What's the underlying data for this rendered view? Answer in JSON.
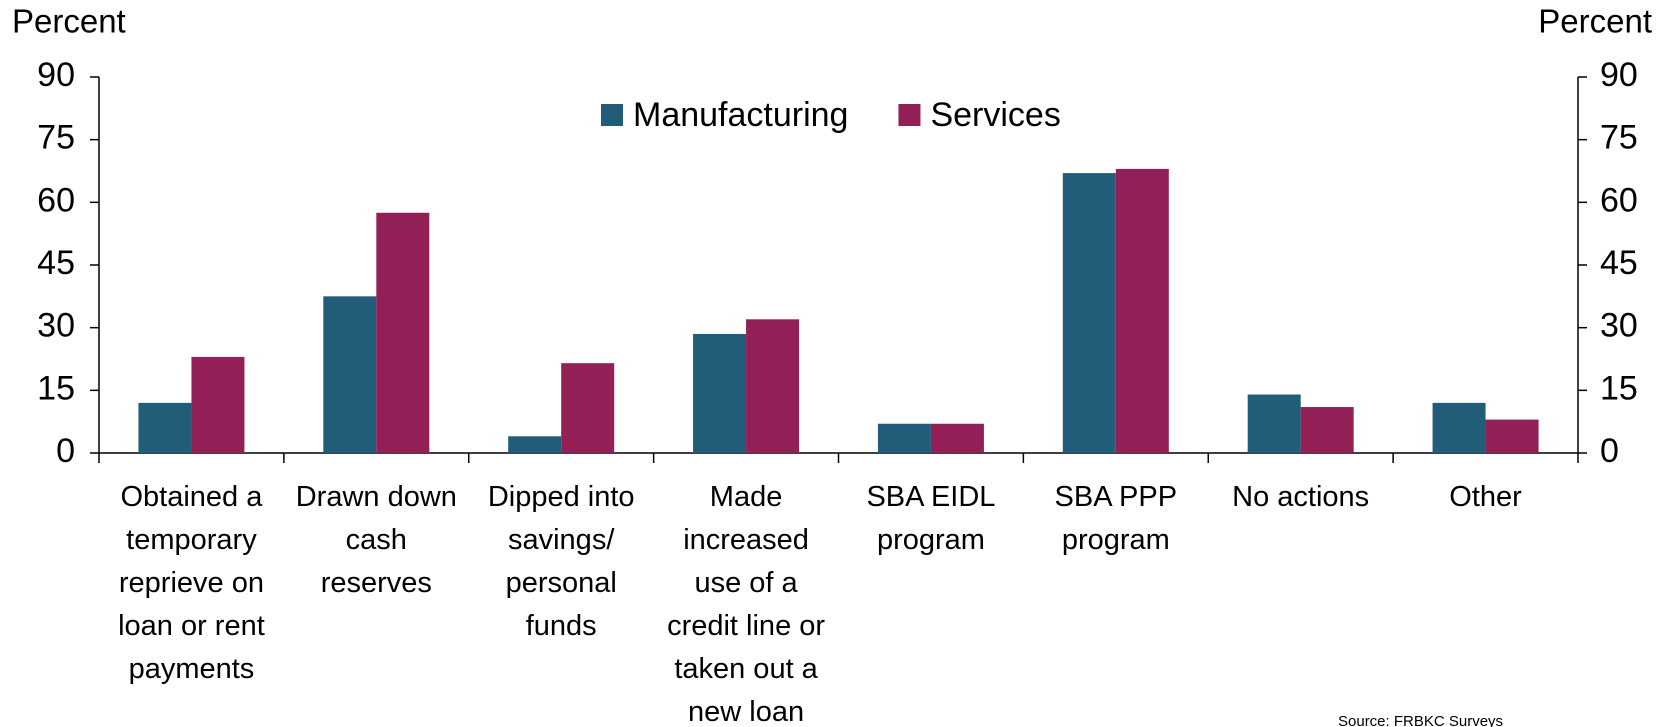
{
  "chart_data": {
    "type": "bar",
    "y_label": "Percent",
    "y2_label": "Percent",
    "categories": [
      "Obtained a temporary reprieve on loan or rent payments",
      "Drawn down cash reserves",
      "Dipped into savings/ personal funds",
      "Made increased use of a credit line or taken out a new loan",
      "SBA EIDL program",
      "SBA PPP program",
      "No actions",
      "Other"
    ],
    "series": [
      {
        "name": "Manufacturing",
        "color": "#215d78",
        "values": [
          12,
          37.5,
          4,
          28.5,
          7,
          67,
          14,
          12
        ]
      },
      {
        "name": "Services",
        "color": "#922057",
        "values": [
          23,
          57.5,
          21.5,
          32,
          7,
          68,
          11,
          8
        ]
      }
    ],
    "ylim": [
      0,
      90
    ],
    "yticks": [
      0,
      15,
      30,
      45,
      60,
      75,
      90
    ],
    "y2lim": [
      0,
      90
    ],
    "y2ticks": [
      0,
      15,
      30,
      45,
      60,
      75,
      90
    ],
    "legend": "top-center",
    "source": "Source: FRBKC Surveys"
  }
}
